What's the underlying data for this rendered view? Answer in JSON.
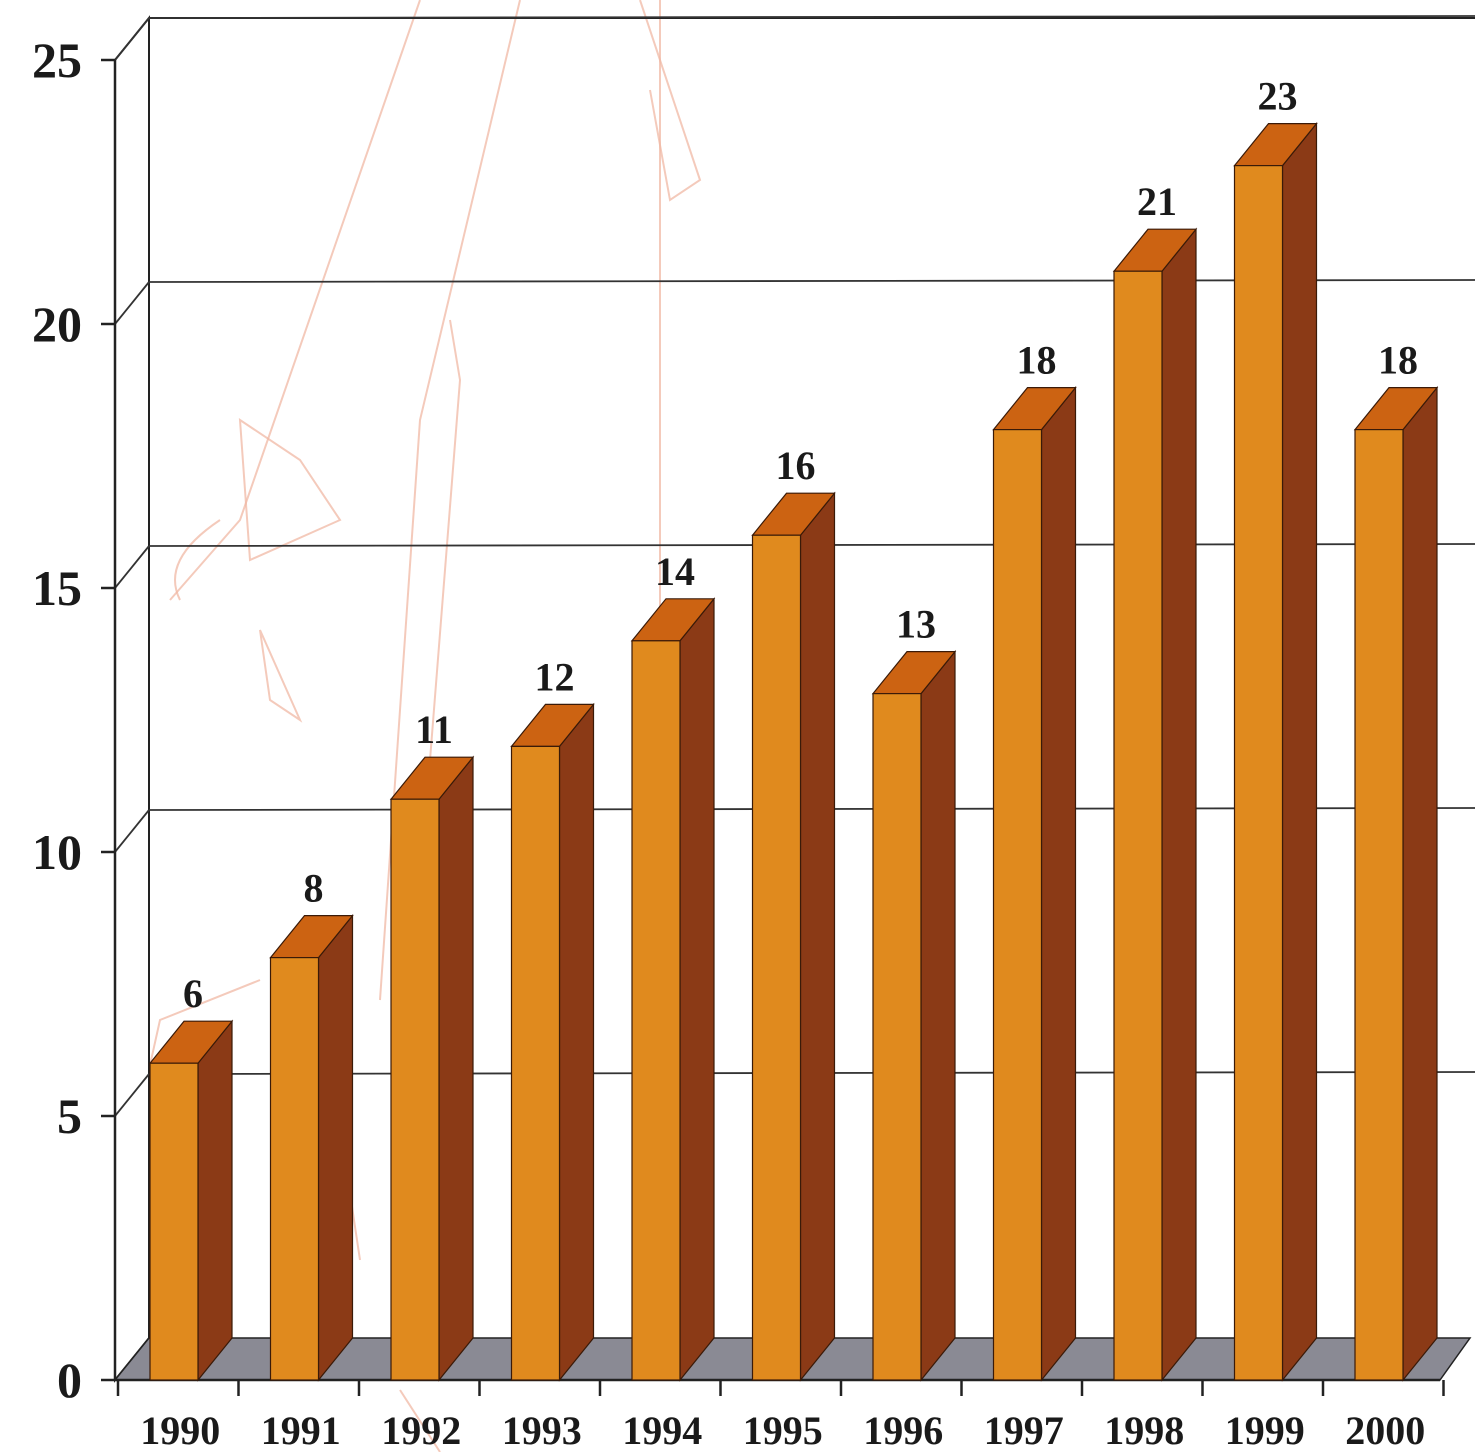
{
  "chart_data": {
    "type": "bar",
    "categories": [
      "1990",
      "1991",
      "1992",
      "1993",
      "1994",
      "1995",
      "1996",
      "1997",
      "1998",
      "1999",
      "2000"
    ],
    "values": [
      6,
      8,
      11,
      12,
      14,
      16,
      13,
      18,
      21,
      23,
      18
    ],
    "data_labels": [
      "6",
      "8",
      "11",
      "12",
      "14",
      "16",
      "13",
      "18",
      "21",
      "23",
      "18"
    ],
    "y_ticks": [
      "0",
      "5",
      "10",
      "15",
      "20",
      "25"
    ],
    "ylim": [
      0,
      25
    ],
    "grid": true,
    "style": "3d",
    "colors": {
      "bar_front": "#E08A1E",
      "bar_top": "#CC6312",
      "bar_side": "#8B3A16",
      "floor": "#8A8A94",
      "axis": "#222222",
      "watermark": "#F0B8A4"
    }
  }
}
